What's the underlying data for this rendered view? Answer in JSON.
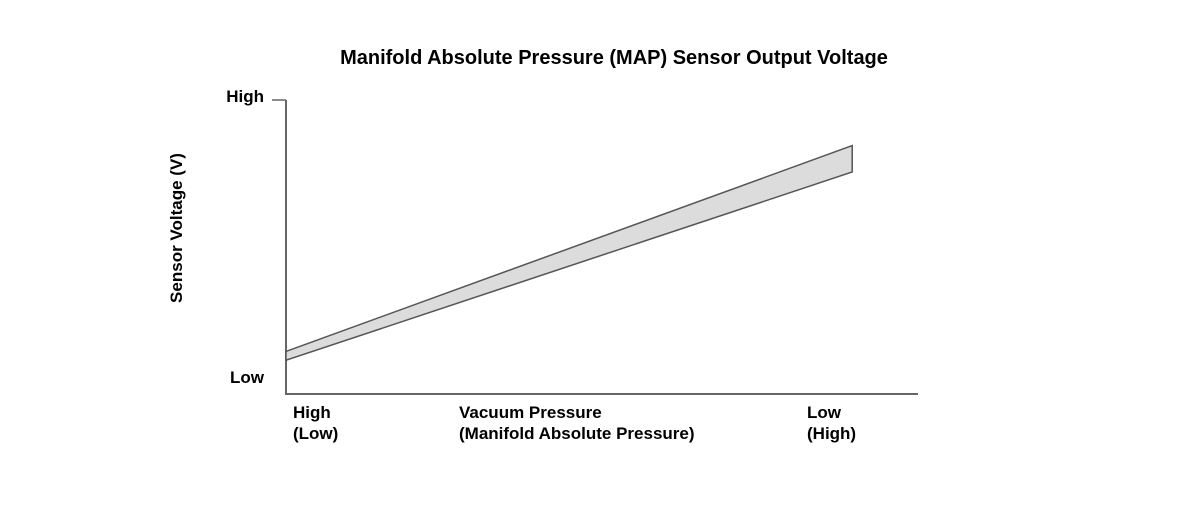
{
  "chart_data": {
    "type": "area",
    "title": "Manifold Absolute Pressure (MAP) Sensor Output Voltage",
    "ylabel": "Sensor Voltage (V)",
    "y_ticks": [
      "High",
      "Low"
    ],
    "x_ticks": [
      {
        "line1": "High",
        "line2": "(Low)"
      },
      {
        "line1": "Vacuum Pressure",
        "line2": "(Manifold Absolute Pressure)"
      },
      {
        "line1": "Low",
        "line2": "(High)"
      }
    ],
    "xlim": [
      0,
      1
    ],
    "ylim": [
      0,
      1
    ],
    "series": [
      {
        "x": [
          0,
          0.84
        ],
        "upper": [
          0.145,
          0.845
        ],
        "lower": [
          0.115,
          0.755
        ]
      }
    ],
    "band_fill": "#dcdcdc",
    "band_stroke": "#555555",
    "axis_color": "#666666",
    "grid": false
  }
}
